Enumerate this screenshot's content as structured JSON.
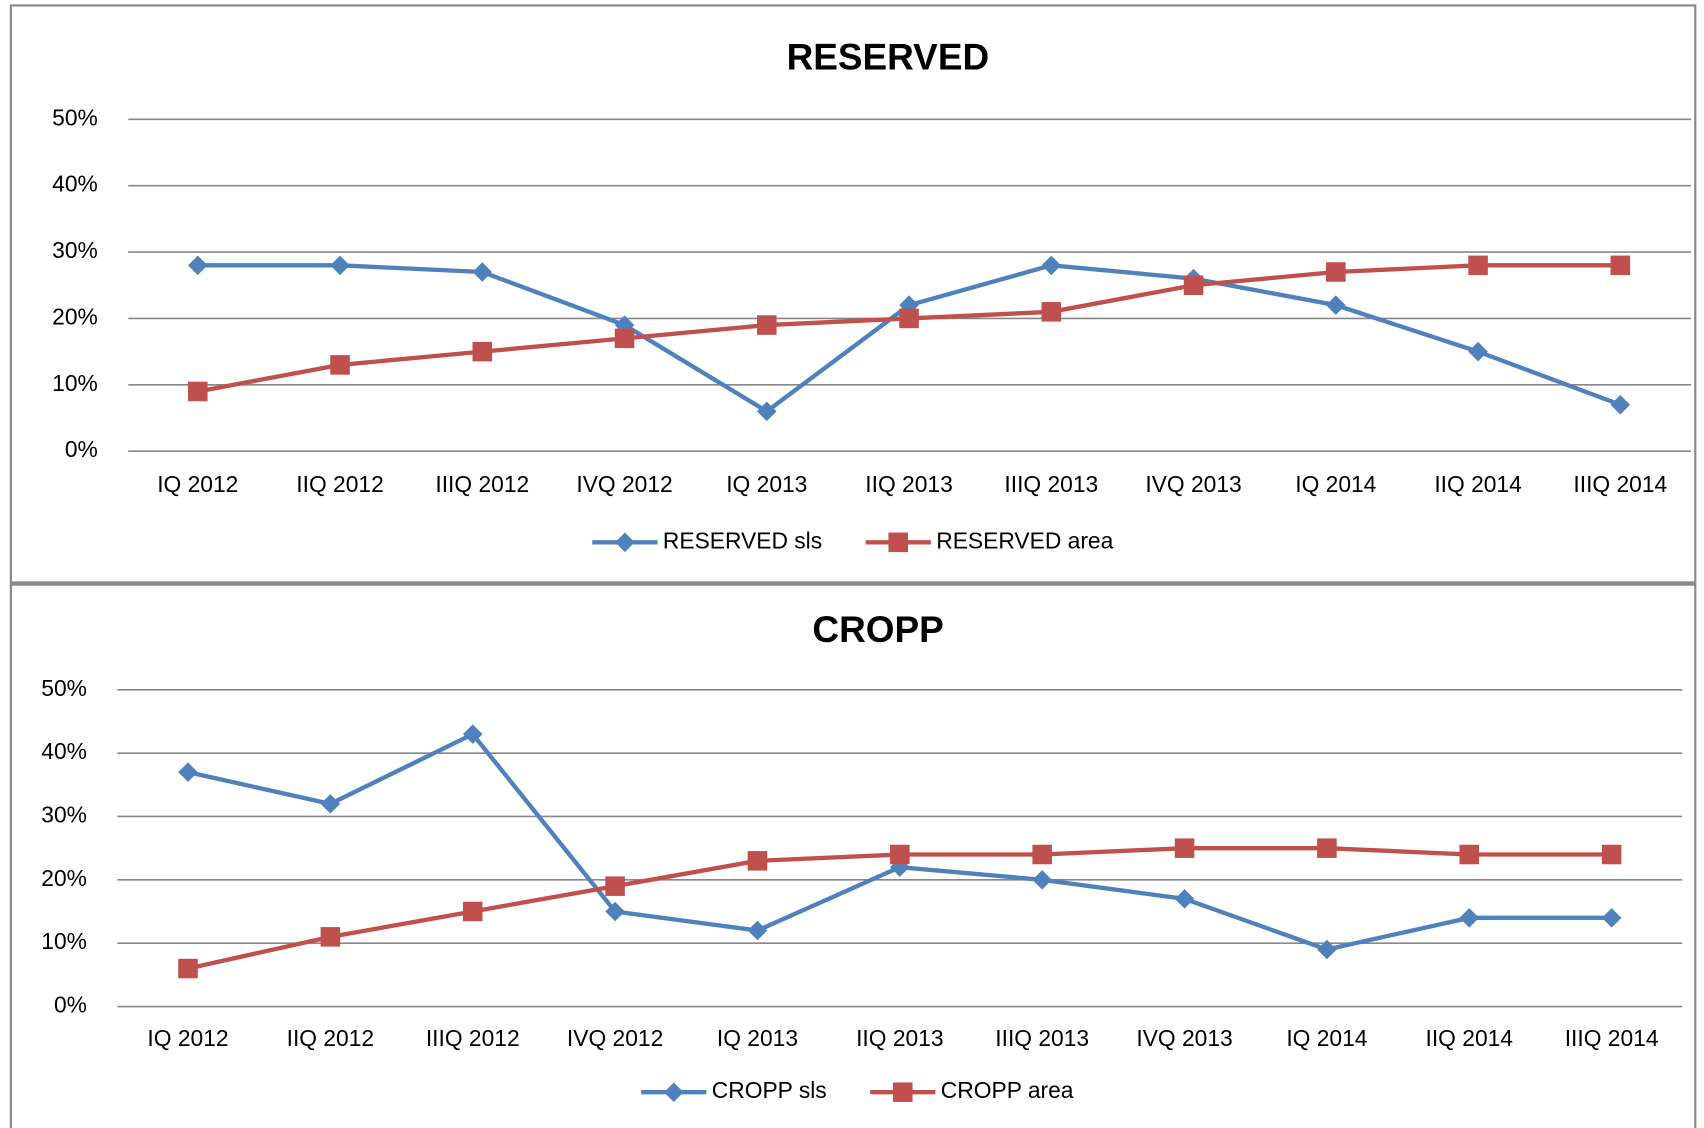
{
  "chart_data": [
    {
      "type": "line",
      "title": "RESERVED",
      "categories": [
        "IQ 2012",
        "IIQ 2012",
        "IIIQ 2012",
        "IVQ 2012",
        "IQ 2013",
        "IIQ 2013",
        "IIIQ 2013",
        "IVQ 2013",
        "IQ 2014",
        "IIQ 2014",
        "IIIQ 2014"
      ],
      "series": [
        {
          "name": "RESERVED sls",
          "color": "#4f81bd",
          "marker": "diamond",
          "values": [
            28,
            28,
            27,
            19,
            6,
            22,
            28,
            26,
            22,
            15,
            7
          ]
        },
        {
          "name": "RESERVED area",
          "color": "#c0504d",
          "marker": "square",
          "values": [
            9,
            13,
            15,
            17,
            19,
            20,
            21,
            25,
            27,
            28,
            28
          ]
        }
      ],
      "ylim": [
        0,
        50
      ],
      "yticks": [
        {
          "value": 0,
          "label": "0%"
        },
        {
          "value": 10,
          "label": "10%"
        },
        {
          "value": 20,
          "label": "20%"
        },
        {
          "value": 30,
          "label": "30%"
        },
        {
          "value": 40,
          "label": "40%"
        },
        {
          "value": 50,
          "label": "50%"
        }
      ],
      "grid": true,
      "legend": "bottom"
    },
    {
      "type": "line",
      "title": "CROPP",
      "categories": [
        "IQ 2012",
        "IIQ 2012",
        "IIIQ 2012",
        "IVQ 2012",
        "IQ 2013",
        "IIQ 2013",
        "IIIQ 2013",
        "IVQ 2013",
        "IQ 2014",
        "IIQ 2014",
        "IIIQ 2014"
      ],
      "series": [
        {
          "name": "CROPP sls",
          "color": "#4f81bd",
          "marker": "diamond",
          "values": [
            37,
            32,
            43,
            15,
            12,
            22,
            20,
            17,
            9,
            14,
            14
          ]
        },
        {
          "name": "CROPP area",
          "color": "#c0504d",
          "marker": "square",
          "values": [
            6,
            11,
            15,
            19,
            23,
            24,
            24,
            25,
            25,
            24,
            24
          ]
        }
      ],
      "ylim": [
        0,
        50
      ],
      "yticks": [
        {
          "value": 0,
          "label": "0%"
        },
        {
          "value": 10,
          "label": "10%"
        },
        {
          "value": 20,
          "label": "20%"
        },
        {
          "value": 30,
          "label": "30%"
        },
        {
          "value": 40,
          "label": "40%"
        },
        {
          "value": 50,
          "label": "50%"
        }
      ],
      "grid": true,
      "legend": "bottom"
    }
  ]
}
